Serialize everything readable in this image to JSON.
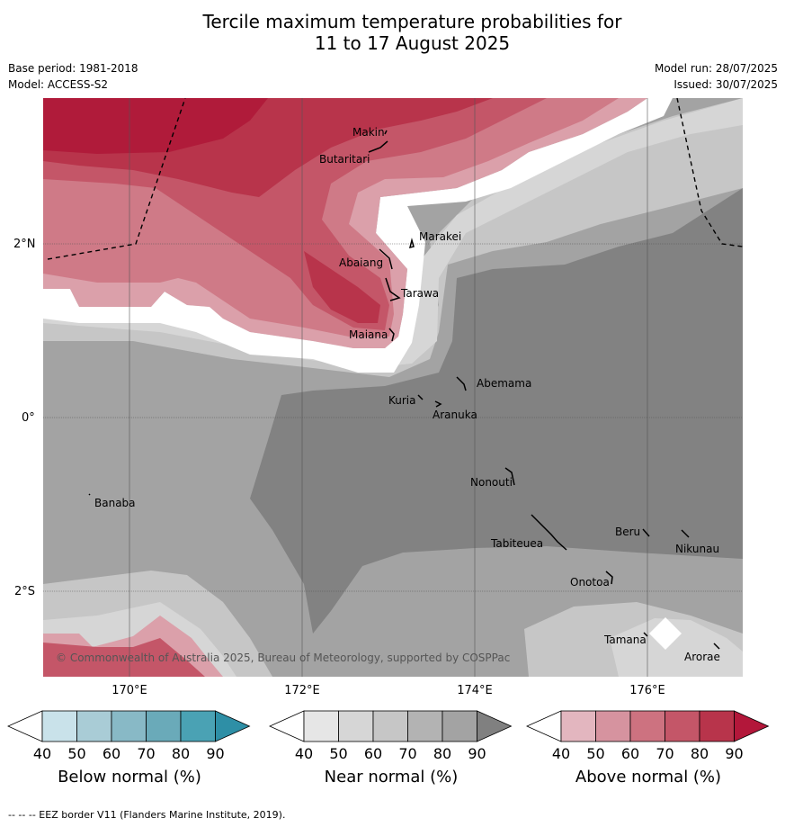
{
  "title_line1": "Tercile maximum temperature probabilities for",
  "title_line2": "11 to 17 August 2025",
  "base_period": "Base period: 1981-2018",
  "model": "Model: ACCESS-S2",
  "model_run": "Model run: 28/07/2025",
  "issued": "Issued: 30/07/2025",
  "copyright": "© Commonwealth of Australia 2025, Bureau of Meteorology, supported by COSPPac",
  "footnote": "--  --  -- EEZ border V11 (Flanders Marine Institute, 2019).",
  "lat_ticks": [
    "2°N",
    "0°",
    "2°S"
  ],
  "lon_ticks": [
    "170°E",
    "172°E",
    "174°E",
    "176°E"
  ],
  "places": [
    "Makin",
    "Butaritari",
    "Marakei",
    "Abaiang",
    "Tarawa",
    "Maiana",
    "Abemama",
    "Kuria",
    "Aranuka",
    "Banaba",
    "Nonouti",
    "Beru",
    "Tabiteuea",
    "Nikunau",
    "Onotoa",
    "Tamana",
    "Arorae"
  ],
  "colorbars": [
    {
      "title": "Below normal (%)",
      "ticks": [
        "40",
        "50",
        "60",
        "70",
        "80",
        "90"
      ],
      "colors": [
        "#ffffff",
        "#c9e2ea",
        "#a9ccd6",
        "#88b9c6",
        "#6aaab9",
        "#4aa2b4",
        "#2e8fa6"
      ]
    },
    {
      "title": "Near normal (%)",
      "ticks": [
        "40",
        "50",
        "60",
        "70",
        "80",
        "90"
      ],
      "colors": [
        "#ffffff",
        "#e6e6e6",
        "#d6d6d6",
        "#c6c6c6",
        "#b3b3b3",
        "#a3a3a3",
        "#808080"
      ]
    },
    {
      "title": "Above normal (%)",
      "ticks": [
        "40",
        "50",
        "60",
        "70",
        "80",
        "90"
      ],
      "colors": [
        "#ffffff",
        "#e3b6bf",
        "#d6939f",
        "#cd7280",
        "#c45668",
        "#b8344b",
        "#b3173a"
      ]
    }
  ]
}
